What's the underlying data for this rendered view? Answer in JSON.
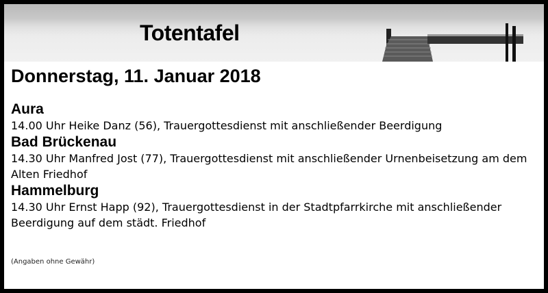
{
  "banner": {
    "title": "Totentafel",
    "image": "pier-lake-photo"
  },
  "date_heading": "Donnerstag, 11. Januar 2018",
  "locations": [
    {
      "place": "Aura",
      "entry": "14.00 Uhr Heike Danz (56), Trauergottesdienst mit anschließender Beerdigung"
    },
    {
      "place": "Bad Brückenau",
      "entry": "14.30 Uhr Manfred Jost (77), Trauergottesdienst mit anschließender Urnenbeisetzung am dem Alten Friedhof"
    },
    {
      "place": "Hammelburg",
      "entry": "14.30 Uhr Ernst Happ (92), Trauergottesdienst in der Stadtpfarrkirche mit anschließender Beerdigung auf dem städt. Friedhof"
    }
  ],
  "footnote": "(Angaben ohne Gewähr)"
}
